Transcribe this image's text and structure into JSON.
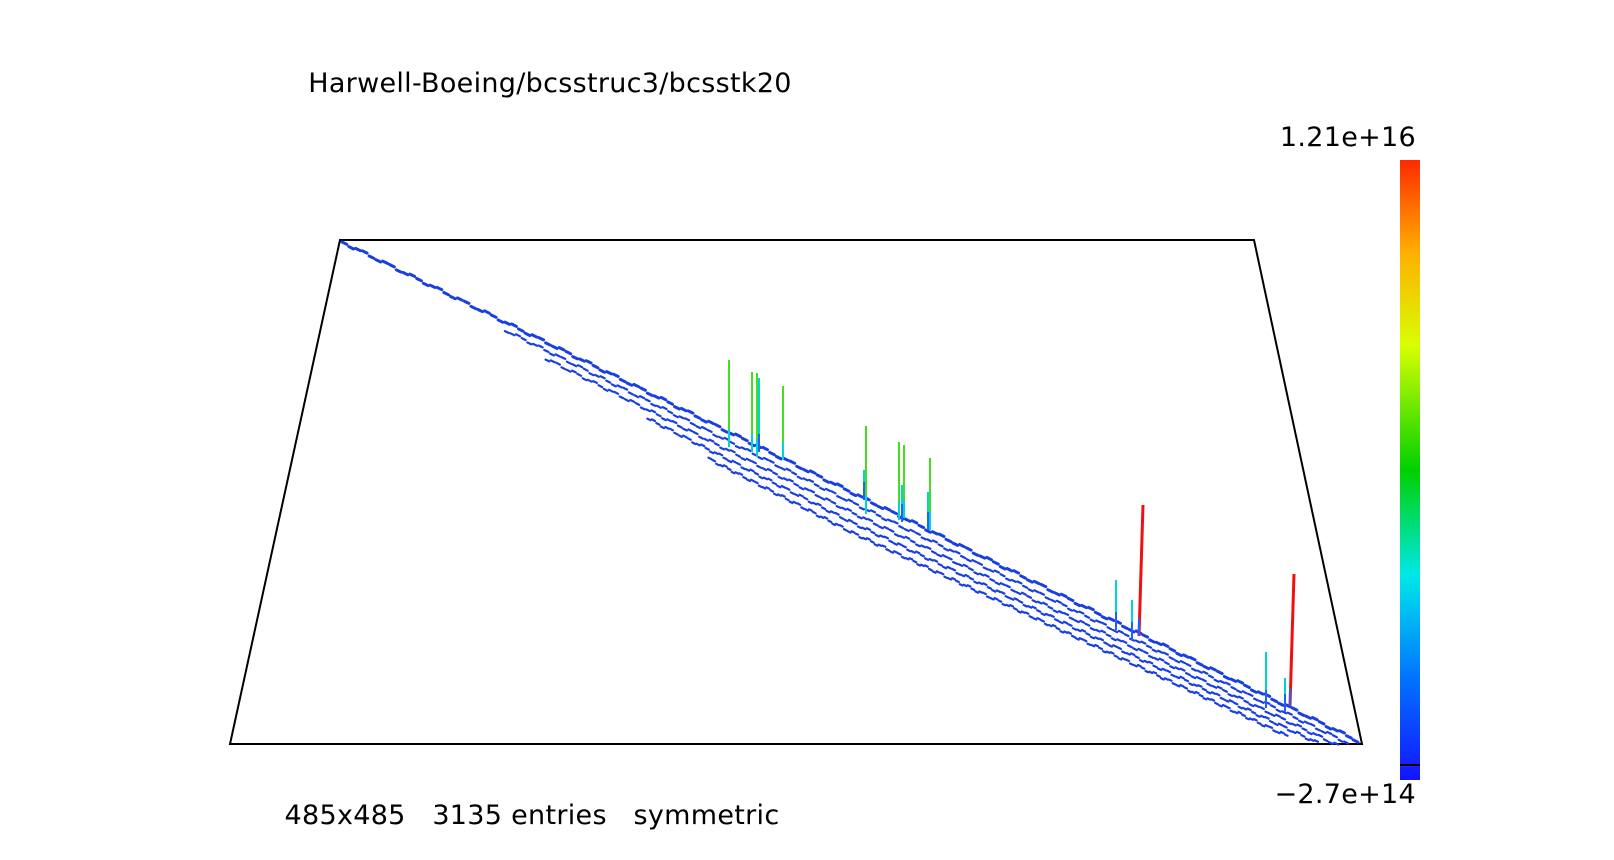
{
  "title": "Harwell-Boeing/bcsstruc3/bcsstk20",
  "matrix": {
    "size": "485x485",
    "entries": "3135 entries",
    "symmetry": "symmetric"
  },
  "colorbar": {
    "max_label": "1.21e+16",
    "min_label": "−2.7e+14",
    "stops": [
      "#1414ff",
      "#0077ff",
      "#00e8e8",
      "#00d000",
      "#d8ff00",
      "#ffb000",
      "#ff2a00"
    ]
  },
  "colors": {
    "frame": "#000000",
    "band": "#1a3fe0",
    "spike_green": "#44dd22",
    "spike_cyan": "#00d4d4",
    "spike_red": "#ee1111"
  }
}
